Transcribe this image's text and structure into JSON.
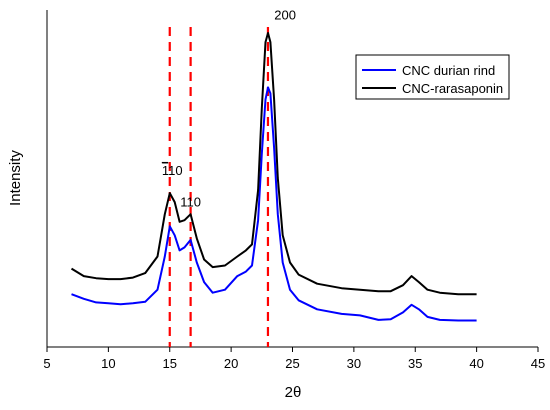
{
  "chart_data": {
    "type": "line",
    "title": "",
    "xlabel": "2θ",
    "ylabel": "Intensity",
    "xlim": [
      5,
      45
    ],
    "xticks": [
      5,
      10,
      15,
      20,
      25,
      30,
      35,
      40,
      45
    ],
    "y_tick_labels": false,
    "ylim": [
      0,
      100
    ],
    "grid": false,
    "legend_position": "top-right",
    "series": [
      {
        "name": "CNC durian rind",
        "color": "#0000ff",
        "points": [
          [
            7.0,
            13.5
          ],
          [
            8.0,
            12.0
          ],
          [
            9.0,
            10.8
          ],
          [
            10.0,
            10.5
          ],
          [
            11.0,
            10.2
          ],
          [
            12.0,
            10.5
          ],
          [
            13.0,
            11.0
          ],
          [
            14.0,
            15.0
          ],
          [
            14.6,
            26.0
          ],
          [
            15.0,
            36.0
          ],
          [
            15.4,
            33.0
          ],
          [
            15.8,
            28.0
          ],
          [
            16.2,
            29.0
          ],
          [
            16.7,
            31.5
          ],
          [
            17.2,
            24.0
          ],
          [
            17.8,
            17.5
          ],
          [
            18.5,
            14.0
          ],
          [
            19.5,
            15.0
          ],
          [
            20.5,
            19.5
          ],
          [
            21.2,
            21.0
          ],
          [
            21.7,
            23.0
          ],
          [
            22.2,
            38.0
          ],
          [
            22.5,
            60.0
          ],
          [
            22.8,
            78.0
          ],
          [
            23.0,
            82.0
          ],
          [
            23.2,
            80.0
          ],
          [
            23.5,
            62.0
          ],
          [
            23.8,
            40.0
          ],
          [
            24.2,
            24.0
          ],
          [
            24.8,
            15.0
          ],
          [
            25.5,
            11.5
          ],
          [
            27.0,
            8.5
          ],
          [
            29.0,
            7.0
          ],
          [
            30.5,
            6.5
          ],
          [
            32.0,
            5.0
          ],
          [
            33.0,
            5.2
          ],
          [
            34.0,
            7.5
          ],
          [
            34.7,
            10.0
          ],
          [
            35.3,
            8.5
          ],
          [
            36.0,
            6.0
          ],
          [
            37.0,
            5.0
          ],
          [
            38.5,
            4.8
          ],
          [
            40.0,
            4.8
          ]
        ]
      },
      {
        "name": "CNC-rarasaponin",
        "color": "#000000",
        "points": [
          [
            7.0,
            22.0
          ],
          [
            8.0,
            19.5
          ],
          [
            9.0,
            18.8
          ],
          [
            10.0,
            18.5
          ],
          [
            11.0,
            18.5
          ],
          [
            12.0,
            19.0
          ],
          [
            13.0,
            20.5
          ],
          [
            14.0,
            26.0
          ],
          [
            14.6,
            40.0
          ],
          [
            15.0,
            47.0
          ],
          [
            15.4,
            44.0
          ],
          [
            15.8,
            37.5
          ],
          [
            16.2,
            38.0
          ],
          [
            16.7,
            40.0
          ],
          [
            17.2,
            32.0
          ],
          [
            17.8,
            25.0
          ],
          [
            18.5,
            22.5
          ],
          [
            19.5,
            23.0
          ],
          [
            20.5,
            26.0
          ],
          [
            21.2,
            28.0
          ],
          [
            21.7,
            30.0
          ],
          [
            22.2,
            48.0
          ],
          [
            22.5,
            75.0
          ],
          [
            22.8,
            97.0
          ],
          [
            23.0,
            100.0
          ],
          [
            23.2,
            97.0
          ],
          [
            23.5,
            78.0
          ],
          [
            23.8,
            52.0
          ],
          [
            24.2,
            33.0
          ],
          [
            24.8,
            24.0
          ],
          [
            25.5,
            20.0
          ],
          [
            27.0,
            17.0
          ],
          [
            29.0,
            15.5
          ],
          [
            30.5,
            15.0
          ],
          [
            32.0,
            14.5
          ],
          [
            33.0,
            14.5
          ],
          [
            34.0,
            16.5
          ],
          [
            34.7,
            19.5
          ],
          [
            35.3,
            17.5
          ],
          [
            36.0,
            15.0
          ],
          [
            37.0,
            14.0
          ],
          [
            38.5,
            13.5
          ],
          [
            40.0,
            13.5
          ]
        ]
      }
    ],
    "reference_lines": [
      {
        "x": 15.0,
        "color": "#ff0000",
        "style": "dashed"
      },
      {
        "x": 16.7,
        "color": "#ff0000",
        "style": "dashed"
      },
      {
        "x": 23.0,
        "color": "#ff0000",
        "style": "dashed"
      }
    ],
    "annotations": [
      {
        "text": "110",
        "overline_first_digit": true,
        "x": 15.2,
        "y": 53
      },
      {
        "text": "110",
        "overline_first_digit": false,
        "x": 16.7,
        "y": 42.5
      },
      {
        "text": "200",
        "x": 24.4,
        "y": 104.5
      }
    ]
  }
}
